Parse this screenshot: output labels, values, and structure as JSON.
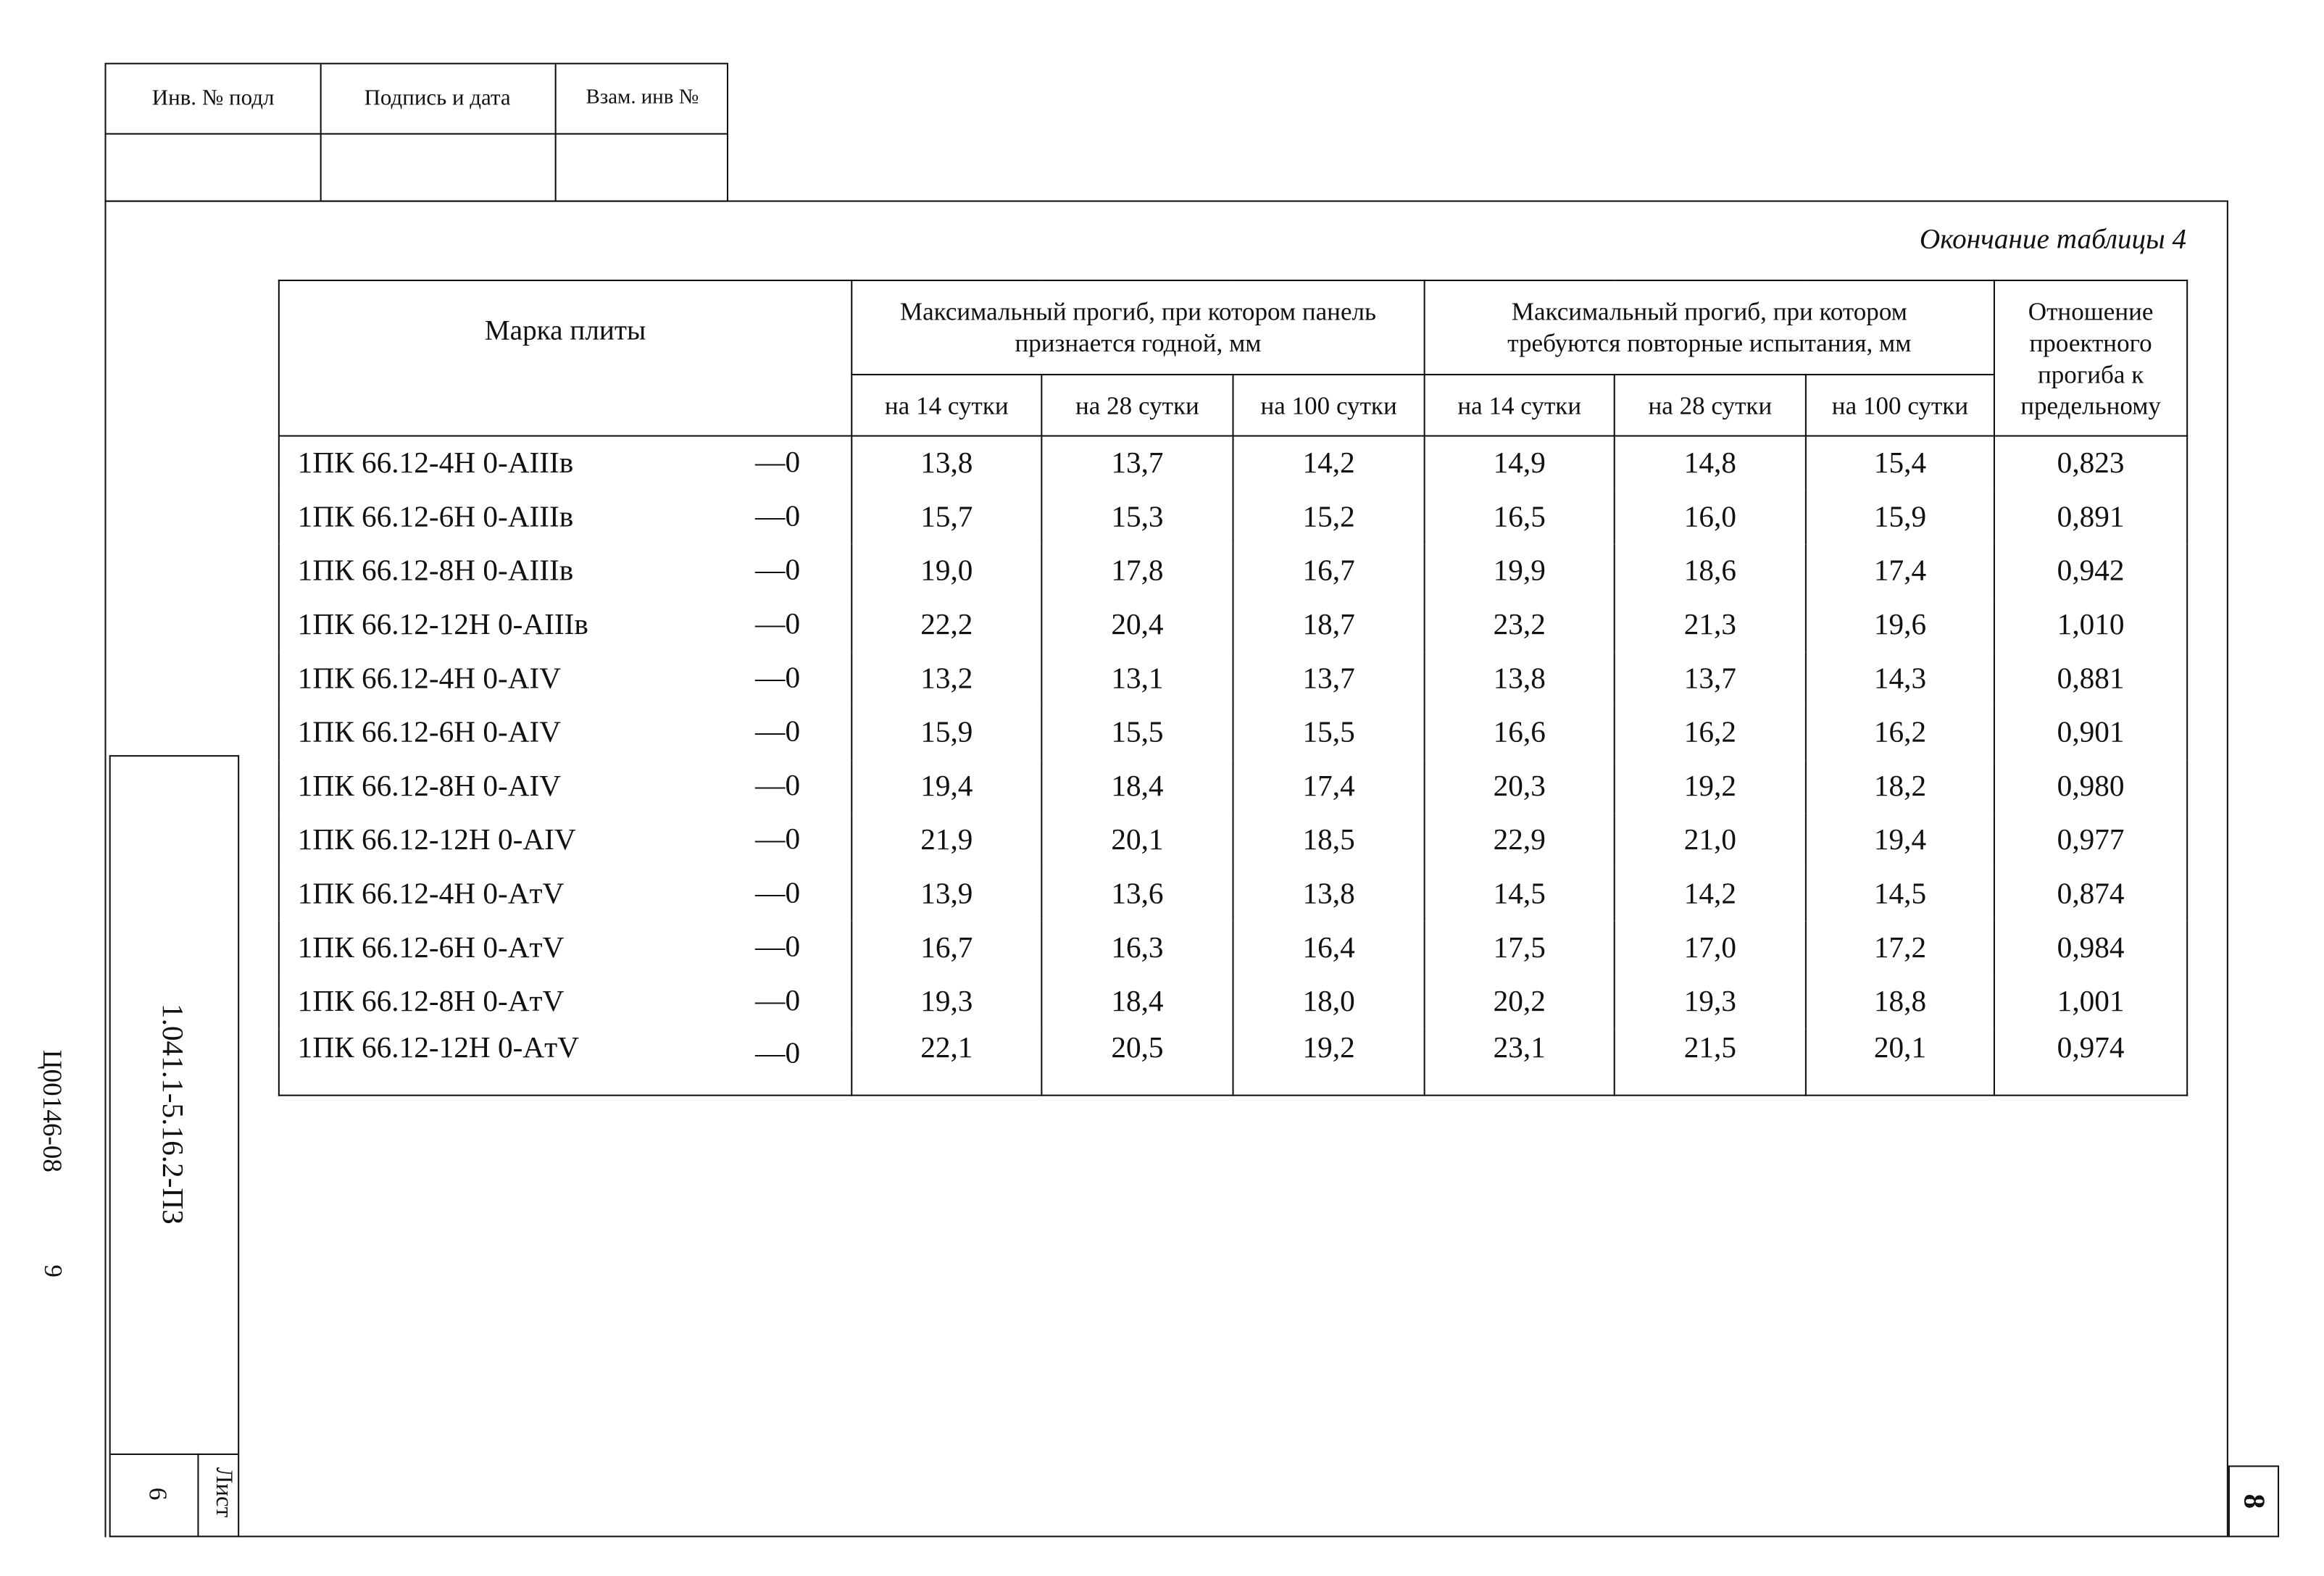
{
  "stamp": {
    "col1": "Инв. № подл",
    "col2": "Подпись и дата",
    "col3": "Взам. инв №"
  },
  "caption": "Окончание таблицы 4",
  "table": {
    "header": {
      "mark": "Марка плиты",
      "group1": "Максимальный прогиб, при котором панель признается годной, мм",
      "group2": "Максимальный прогиб, при котором требуются повторные испытания, мм",
      "ratio": "Отношение проектного прогиба к предельному",
      "d14": "на 14 сутки",
      "d28": "на 28 сутки",
      "d100": "на 100 сутки"
    },
    "rows": [
      {
        "mark": "1ПК 66.12-4Н 0-AIIIв",
        "suffix": "—0",
        "v": [
          "13,8",
          "13,7",
          "14,2",
          "14,9",
          "14,8",
          "15,4",
          "0,823"
        ]
      },
      {
        "mark": "1ПК 66.12-6Н 0-AIIIв",
        "suffix": "—0",
        "v": [
          "15,7",
          "15,3",
          "15,2",
          "16,5",
          "16,0",
          "15,9",
          "0,891"
        ]
      },
      {
        "mark": "1ПК 66.12-8Н 0-AIIIв",
        "suffix": "—0",
        "v": [
          "19,0",
          "17,8",
          "16,7",
          "19,9",
          "18,6",
          "17,4",
          "0,942"
        ]
      },
      {
        "mark": "1ПК 66.12-12Н 0-AIIIв",
        "suffix": "—0",
        "v": [
          "22,2",
          "20,4",
          "18,7",
          "23,2",
          "21,3",
          "19,6",
          "1,010"
        ]
      },
      {
        "mark": "1ПК 66.12-4Н 0-AIV",
        "suffix": "—0",
        "v": [
          "13,2",
          "13,1",
          "13,7",
          "13,8",
          "13,7",
          "14,3",
          "0,881"
        ]
      },
      {
        "mark": "1ПК 66.12-6Н 0-AIV",
        "suffix": "—0",
        "v": [
          "15,9",
          "15,5",
          "15,5",
          "16,6",
          "16,2",
          "16,2",
          "0,901"
        ]
      },
      {
        "mark": "1ПК 66.12-8Н 0-AIV",
        "suffix": "—0",
        "v": [
          "19,4",
          "18,4",
          "17,4",
          "20,3",
          "19,2",
          "18,2",
          "0,980"
        ]
      },
      {
        "mark": "1ПК 66.12-12Н 0-AIV",
        "suffix": "—0",
        "v": [
          "21,9",
          "20,1",
          "18,5",
          "22,9",
          "21,0",
          "19,4",
          "0,977"
        ]
      },
      {
        "mark": "1ПК 66.12-4Н 0-AтV",
        "suffix": "—0",
        "v": [
          "13,9",
          "13,6",
          "13,8",
          "14,5",
          "14,2",
          "14,5",
          "0,874"
        ]
      },
      {
        "mark": "1ПК 66.12-6Н 0-AтV",
        "suffix": "—0",
        "v": [
          "16,7",
          "16,3",
          "16,4",
          "17,5",
          "17,0",
          "17,2",
          "0,984"
        ]
      },
      {
        "mark": "1ПК 66.12-8Н 0-AтV",
        "suffix": "—0",
        "v": [
          "19,3",
          "18,4",
          "18,0",
          "20,2",
          "19,3",
          "18,8",
          "1,001"
        ]
      },
      {
        "mark": "1ПК 66.12-12Н 0-AтV",
        "suffix": "—0",
        "v": [
          "22,1",
          "20,5",
          "19,2",
          "23,1",
          "21,5",
          "20,1",
          "0,974"
        ]
      }
    ]
  },
  "titleblock": {
    "doc_code": "1.041.1-5.16.2-ПЗ",
    "sheet_label": "Лист",
    "sheet_number": "6",
    "page_number": "8"
  },
  "margin": {
    "archive_code": "Ц00146-08",
    "archive_sheet": "9"
  }
}
